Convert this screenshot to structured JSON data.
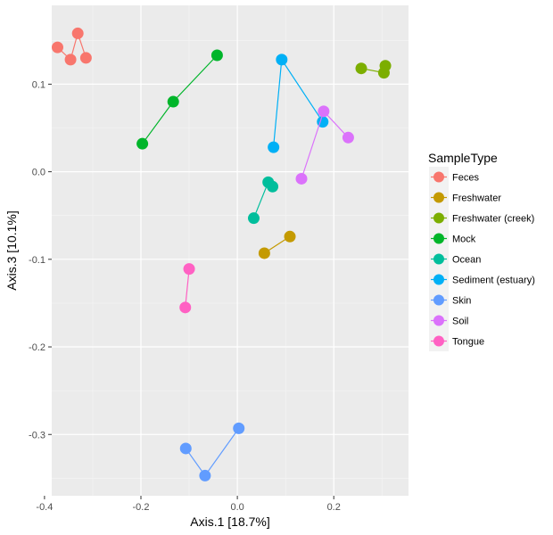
{
  "chart_data": {
    "type": "scatter",
    "title": "",
    "xlabel": "Axis.1   [18.7%]",
    "ylabel": "Axis.3   [10.1%]",
    "xlim": [
      -0.385,
      0.355
    ],
    "ylim": [
      -0.37,
      0.19
    ],
    "x_ticks": [
      -0.4,
      -0.2,
      0.0,
      0.2
    ],
    "x_tick_labels": [
      "-0.4",
      "-0.2",
      "0.0",
      "0.2"
    ],
    "y_ticks": [
      0.1,
      0.0,
      -0.1,
      -0.2,
      -0.3
    ],
    "y_tick_labels": [
      "0.1",
      "0.0",
      "-0.1",
      "-0.2",
      "-0.3"
    ],
    "grid": true,
    "legend_title": "SampleType",
    "legend_position": "right",
    "series": [
      {
        "name": "Feces",
        "color": "#F8766D",
        "points": [
          [
            -0.373,
            0.142
          ],
          [
            -0.346,
            0.128
          ],
          [
            -0.331,
            0.158
          ],
          [
            -0.314,
            0.13
          ]
        ]
      },
      {
        "name": "Freshwater",
        "color": "#C49A00",
        "points": [
          [
            0.056,
            -0.093
          ],
          [
            0.109,
            -0.074
          ]
        ]
      },
      {
        "name": "Freshwater (creek)",
        "color": "#7CAE00",
        "points": [
          [
            0.257,
            0.118
          ],
          [
            0.304,
            0.113
          ],
          [
            0.307,
            0.121
          ]
        ]
      },
      {
        "name": "Mock",
        "color": "#00B52A",
        "points": [
          [
            -0.197,
            0.032
          ],
          [
            -0.133,
            0.08
          ],
          [
            -0.042,
            0.133
          ]
        ]
      },
      {
        "name": "Ocean",
        "color": "#00BE9C",
        "points": [
          [
            0.034,
            -0.053
          ],
          [
            0.064,
            -0.012
          ],
          [
            0.073,
            -0.017
          ]
        ]
      },
      {
        "name": "Sediment (estuary)",
        "color": "#00B0F6",
        "points": [
          [
            0.075,
            0.028
          ],
          [
            0.092,
            0.128
          ],
          [
            0.177,
            0.057
          ]
        ]
      },
      {
        "name": "Skin",
        "color": "#619CFF",
        "points": [
          [
            -0.107,
            -0.316
          ],
          [
            -0.067,
            -0.347
          ],
          [
            0.003,
            -0.293
          ]
        ]
      },
      {
        "name": "Soil",
        "color": "#DB72FB",
        "points": [
          [
            0.133,
            -0.008
          ],
          [
            0.179,
            0.069
          ],
          [
            0.23,
            0.039
          ]
        ]
      },
      {
        "name": "Tongue",
        "color": "#FF61C3",
        "points": [
          [
            -0.108,
            -0.155
          ],
          [
            -0.1,
            -0.111
          ]
        ]
      }
    ]
  }
}
